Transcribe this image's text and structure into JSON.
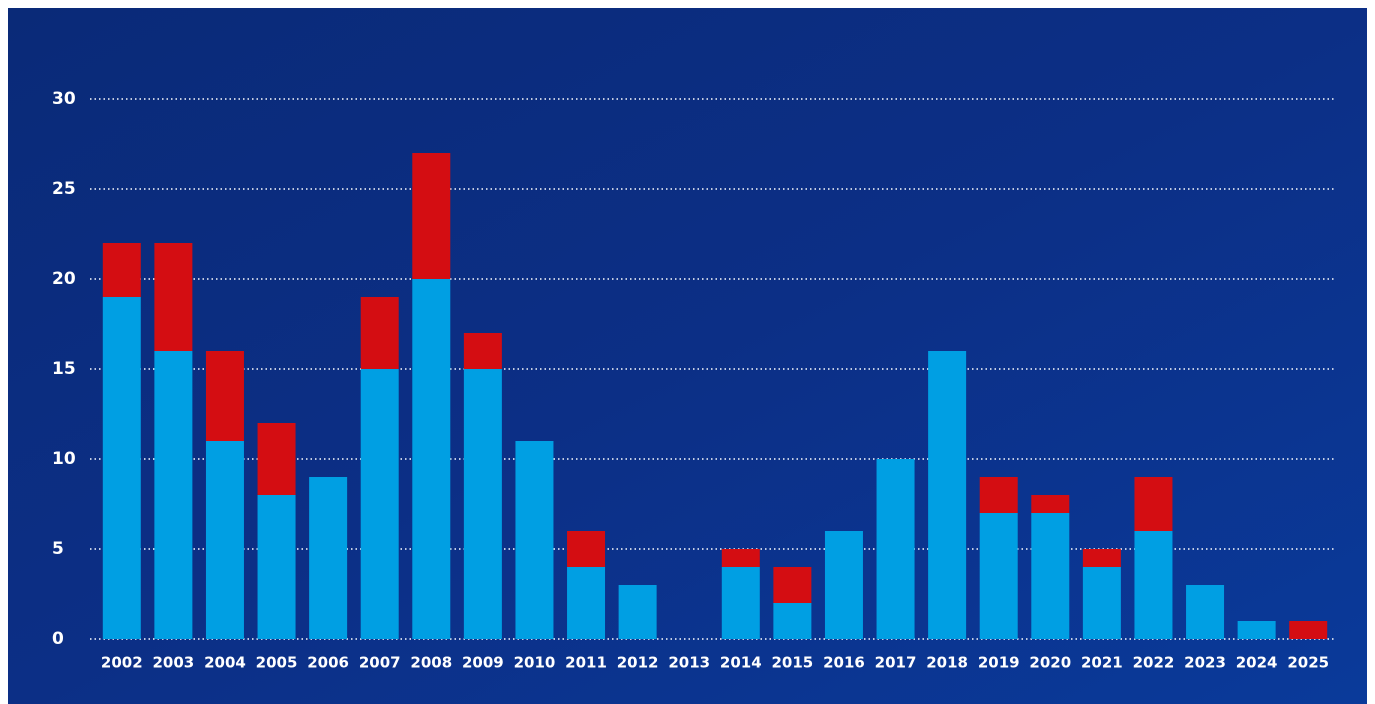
{
  "chart_data": {
    "type": "stacked-bar",
    "categories": [
      "2002",
      "2003",
      "2004",
      "2005",
      "2006",
      "2007",
      "2008",
      "2009",
      "2010",
      "2011",
      "2012",
      "2013",
      "2014",
      "2015",
      "2016",
      "2017",
      "2018",
      "2019",
      "2020",
      "2021",
      "2022",
      "2023",
      "2024",
      "2025"
    ],
    "series": [
      {
        "color": "#009fe3",
        "values": [
          19,
          16,
          11,
          8,
          9,
          15,
          20,
          15,
          11,
          4,
          3,
          0,
          4,
          2,
          6,
          10,
          16,
          7,
          7,
          4,
          6,
          3,
          1,
          0
        ]
      },
      {
        "color": "#d40d12",
        "values": [
          3,
          6,
          5,
          4,
          0,
          4,
          7,
          2,
          0,
          2,
          0,
          0,
          1,
          2,
          0,
          0,
          0,
          2,
          1,
          1,
          3,
          0,
          0,
          1
        ]
      }
    ],
    "ylim": [
      0,
      30
    ],
    "yticks": [
      0,
      5,
      10,
      15,
      20,
      25,
      30
    ],
    "grid": true
  }
}
